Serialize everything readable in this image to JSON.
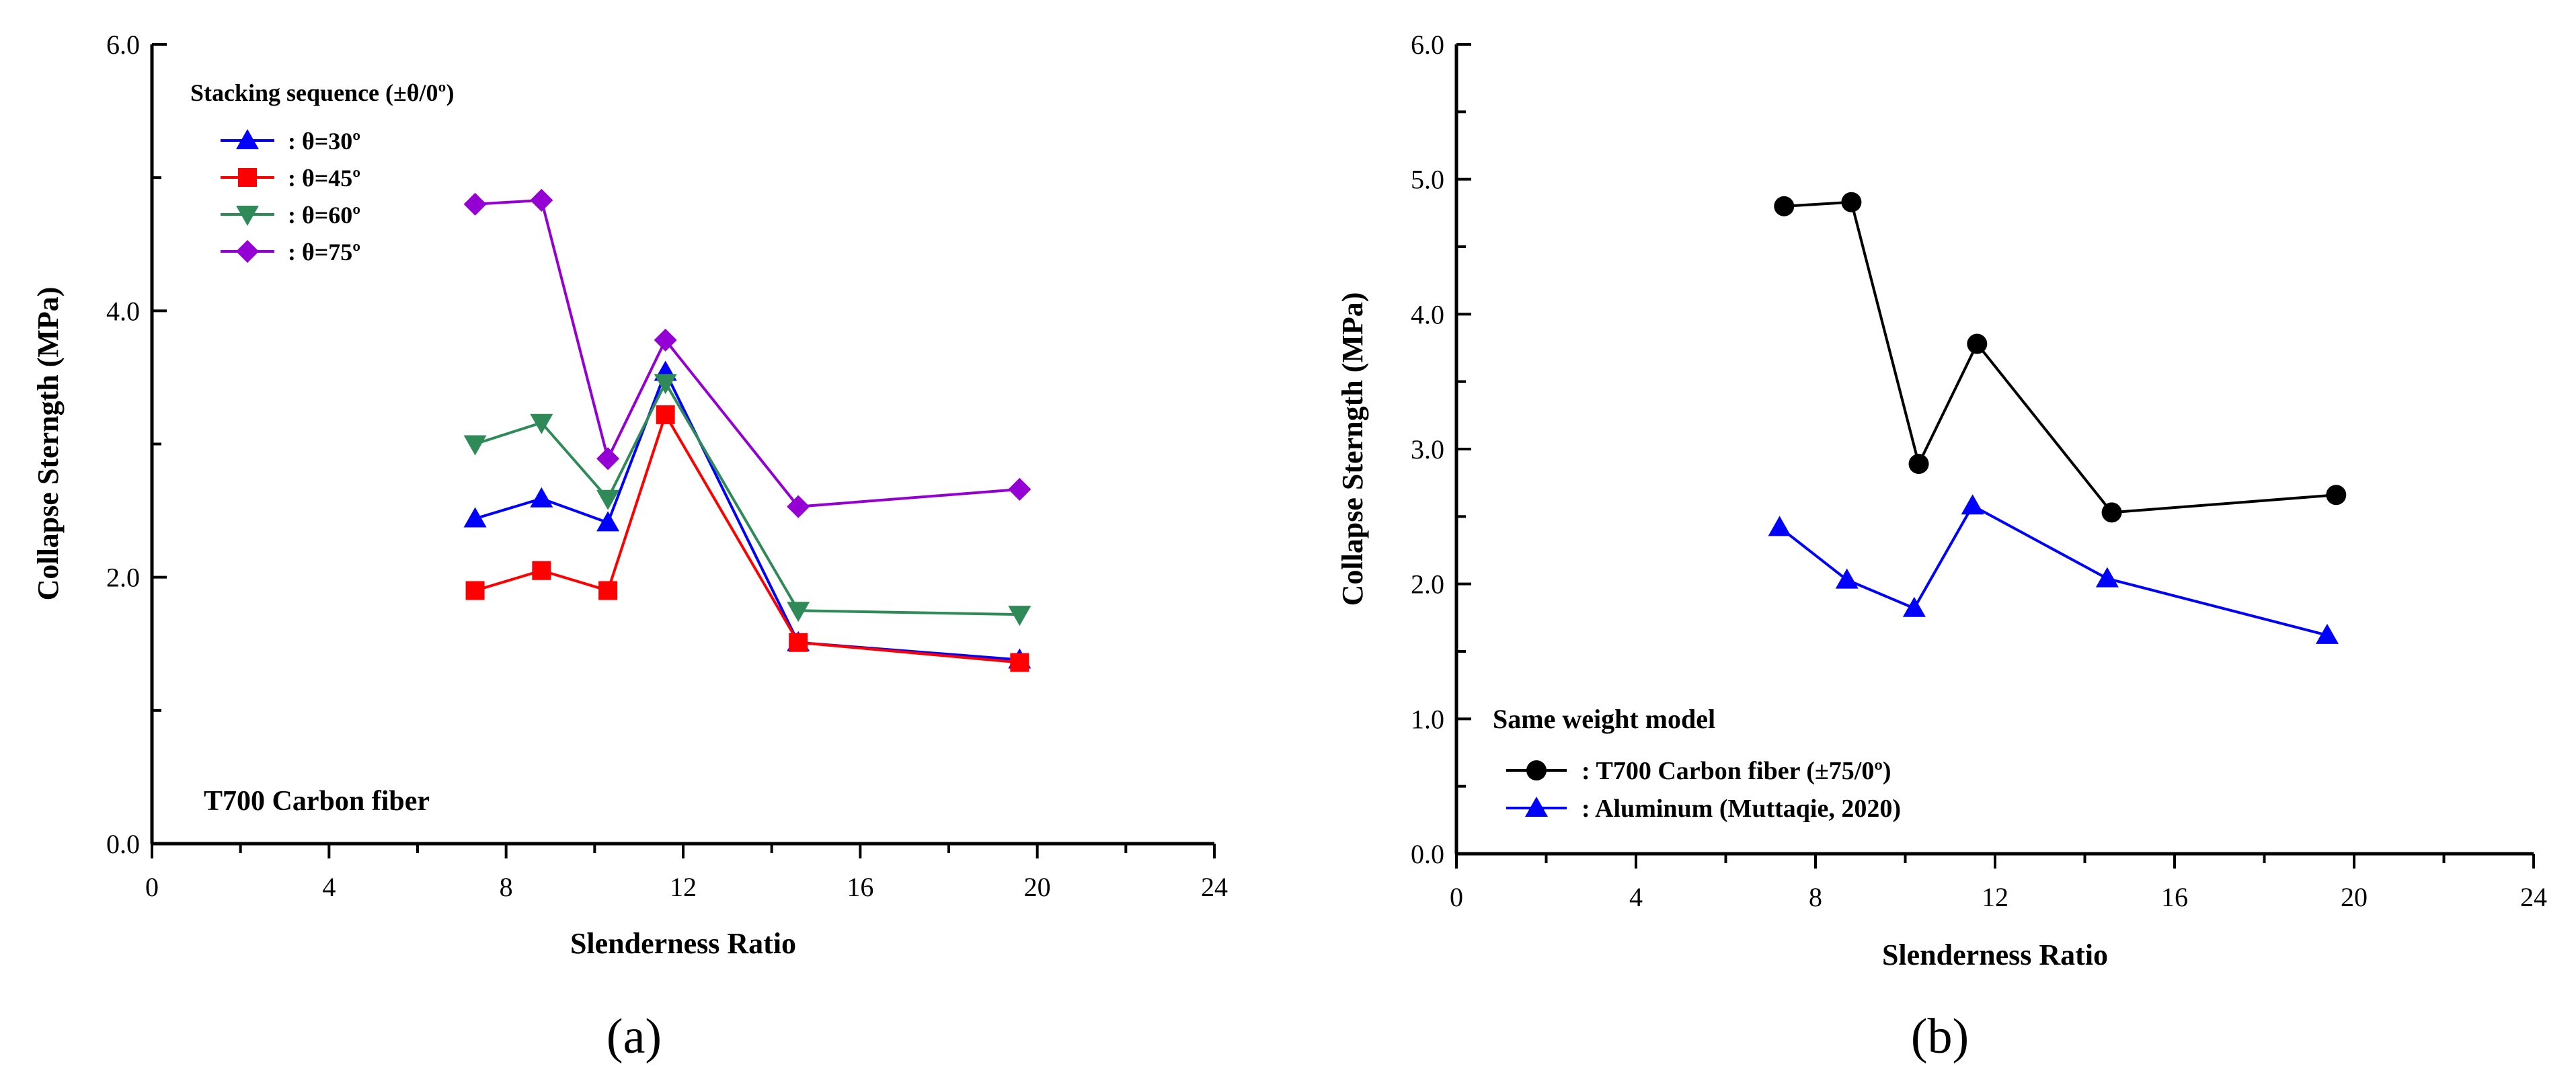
{
  "figure": {
    "panel_a_label": "(a)",
    "panel_b_label": "(b)"
  },
  "chart_data": [
    {
      "type": "line",
      "panel": "a",
      "title": "",
      "xlabel": "Slenderness Ratio",
      "ylabel": "Collapse Sterngth (MPa)",
      "xlim": [
        0,
        24
      ],
      "ylim": [
        0,
        6
      ],
      "xticks": [
        0,
        4,
        8,
        12,
        16,
        20,
        24
      ],
      "xtick_labels": [
        "0",
        "4",
        "8",
        "12",
        "16",
        "20",
        "24"
      ],
      "yticks": [
        0,
        2,
        4,
        6
      ],
      "ytick_labels": [
        "0.0",
        "2.0",
        "4.0",
        "6.0"
      ],
      "grid": false,
      "legend_title": "Stacking sequence (±θ/0º)",
      "legend_position": "top-left",
      "annotation": "T700 Carbon fiber",
      "series": [
        {
          "name": ": θ=30º",
          "color": "#0000ff",
          "marker": "triangle-up",
          "x": [
            7.3,
            8.8,
            10.3,
            11.6,
            14.6,
            19.6
          ],
          "y": [
            2.44,
            2.59,
            2.41,
            3.54,
            1.51,
            1.38
          ]
        },
        {
          "name": ": θ=45º",
          "color": "#ff0000",
          "marker": "square",
          "x": [
            7.3,
            8.8,
            10.3,
            11.6,
            14.6,
            19.6
          ],
          "y": [
            1.9,
            2.05,
            1.9,
            3.22,
            1.51,
            1.36
          ]
        },
        {
          "name": ": θ=60º",
          "color": "#2e8b57",
          "marker": "triangle-down",
          "x": [
            7.3,
            8.8,
            10.3,
            11.6,
            14.6,
            19.6
          ],
          "y": [
            3.0,
            3.16,
            2.59,
            3.46,
            1.75,
            1.72
          ]
        },
        {
          "name": ": θ=75º",
          "color": "#9400d3",
          "marker": "diamond",
          "x": [
            7.3,
            8.8,
            10.3,
            11.6,
            14.6,
            19.6
          ],
          "y": [
            4.8,
            4.83,
            2.89,
            3.78,
            2.53,
            2.66
          ]
        }
      ]
    },
    {
      "type": "line",
      "panel": "b",
      "title": "",
      "xlabel": "Slenderness Ratio",
      "ylabel": "Collapse Sterngth (MPa)",
      "xlim": [
        0,
        24
      ],
      "ylim": [
        0,
        6
      ],
      "xticks": [
        0,
        4,
        8,
        12,
        16,
        20,
        24
      ],
      "xtick_labels": [
        "0",
        "4",
        "8",
        "12",
        "16",
        "20",
        "24"
      ],
      "yticks": [
        0,
        1,
        2,
        3,
        4,
        5,
        6
      ],
      "ytick_labels": [
        "0.0",
        "1.0",
        "2.0",
        "3.0",
        "4.0",
        "5.0",
        "6.0"
      ],
      "grid": false,
      "legend_title": "Same weight model",
      "legend_position": "bottom-left",
      "series": [
        {
          "name": ": T700 Carbon fiber (±75/0º)",
          "color": "#000000",
          "marker": "circle",
          "x": [
            7.3,
            8.8,
            10.3,
            11.6,
            14.6,
            19.6
          ],
          "y": [
            4.8,
            4.83,
            2.89,
            3.78,
            2.53,
            2.66
          ]
        },
        {
          "name": ": Aluminum (Muttaqie, 2020)",
          "color": "#0000ff",
          "marker": "triangle-up",
          "x": [
            7.2,
            8.7,
            10.2,
            11.5,
            14.5,
            19.4
          ],
          "y": [
            2.42,
            2.03,
            1.82,
            2.58,
            2.04,
            1.62
          ]
        }
      ]
    }
  ]
}
